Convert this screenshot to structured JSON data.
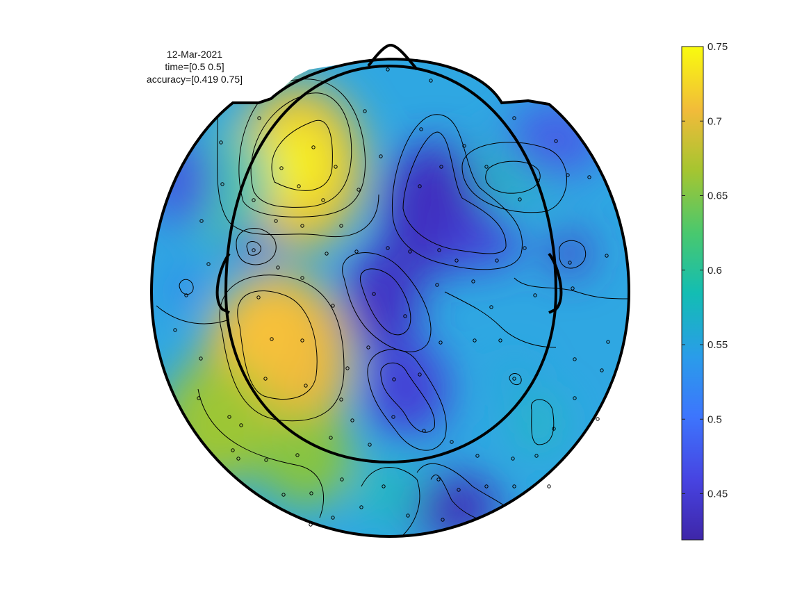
{
  "header": {
    "date": "12-Mar-2021",
    "time": "time=[0.5 0.5]",
    "accuracy": "accuracy=[0.419 0.75]"
  },
  "chart_data": {
    "type": "heatmap",
    "subtype": "topographic-scalp-map",
    "title": "",
    "colormap": "parula",
    "clim": [
      0.419,
      0.75
    ],
    "colorbar": {
      "placement": "right",
      "ticks": [
        0.45,
        0.5,
        0.55,
        0.6,
        0.65,
        0.7,
        0.75
      ],
      "tick_labels": [
        "0.45",
        "0.5",
        "0.55",
        "0.6",
        "0.65",
        "0.7",
        "0.75"
      ]
    },
    "contours": true,
    "outline": [
      "head",
      "nose",
      "left-ear",
      "right-ear",
      "inner-mask"
    ],
    "colors": {
      "parula_low": "#3e26a8",
      "parula_mid": "#13bdb3",
      "parula_high": "#f9fb0e",
      "outline": "#000000"
    },
    "regions": [
      {
        "label": "left-frontal",
        "x": -0.37,
        "y": 0.62,
        "value": 0.75
      },
      {
        "label": "left-temporal",
        "x": -0.55,
        "y": -0.15,
        "value": 0.71
      },
      {
        "label": "left-central-spot",
        "x": -0.6,
        "y": 0.21,
        "value": 0.47
      },
      {
        "label": "right-frontal",
        "x": 0.23,
        "y": 0.43,
        "value": 0.44
      },
      {
        "label": "right-anterior",
        "x": 0.52,
        "y": 0.48,
        "value": 0.6
      },
      {
        "label": "central",
        "x": -0.05,
        "y": -0.02,
        "value": 0.43
      },
      {
        "label": "parietal",
        "x": 0.05,
        "y": -0.32,
        "value": 0.44
      },
      {
        "label": "occipital",
        "x": 0.33,
        "y": -0.9,
        "value": 0.44
      },
      {
        "label": "right-temporal-spot",
        "x": 0.77,
        "y": 0.19,
        "value": 0.46
      },
      {
        "label": "left-edge-spot",
        "x": -0.85,
        "y": 0.0,
        "value": 0.51
      },
      {
        "label": "right-posterior",
        "x": 0.65,
        "y": -0.5,
        "value": 0.57
      }
    ]
  }
}
